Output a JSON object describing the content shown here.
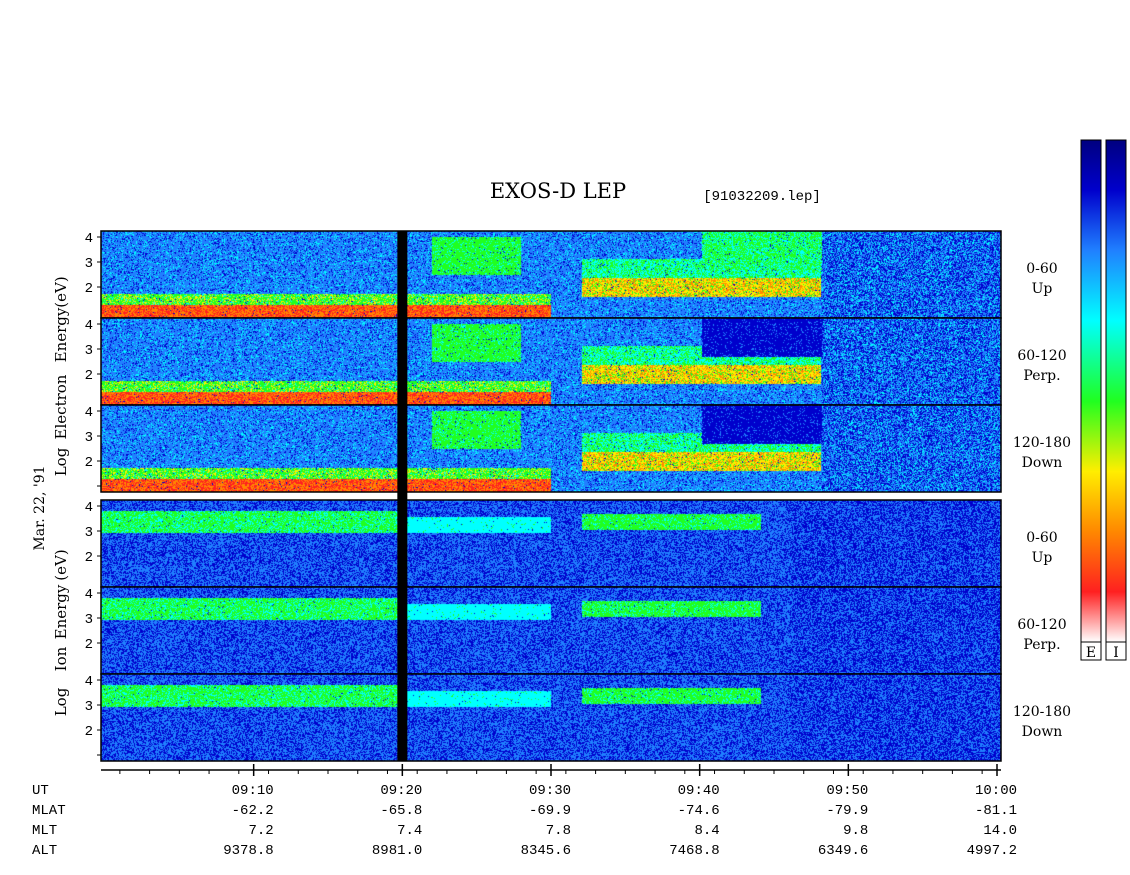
{
  "header": {
    "title": "EXOS-D LEP",
    "file": "[91032209.lep]"
  },
  "date_label": "Mar. 22, '91",
  "groups": [
    {
      "name": "electron",
      "ylabel_words": [
        "Electron",
        "Energy",
        "Log"
      ],
      "ylabel_unit": "(eV)"
    },
    {
      "name": "ion",
      "ylabel_words": [
        "Ion",
        "Energy",
        "Log"
      ],
      "ylabel_unit": "(eV)"
    }
  ],
  "panels": [
    {
      "group": "electron",
      "range": "0-60",
      "dir": "Up"
    },
    {
      "group": "electron",
      "range": "60-120",
      "dir": "Perp."
    },
    {
      "group": "electron",
      "range": "120-180",
      "dir": "Down"
    },
    {
      "group": "ion",
      "range": "0-60",
      "dir": "Up"
    },
    {
      "group": "ion",
      "range": "60-120",
      "dir": "Perp."
    },
    {
      "group": "ion",
      "range": "120-180",
      "dir": "Down"
    }
  ],
  "colorbars": [
    {
      "label": "E"
    },
    {
      "label": "I"
    }
  ],
  "colors": {
    "scale": [
      "#ffffff",
      "#ff2020",
      "#ff8800",
      "#ffee00",
      "#20ff20",
      "#00ffff",
      "#2080ff",
      "#0000cc",
      "#000080"
    ],
    "gap": "#000000"
  },
  "chart_data": {
    "type": "heatmap",
    "title": "EXOS-D LEP",
    "subtitle": "[91032209.lep]",
    "xlabel": "UT",
    "x_ticks": [
      "09:10",
      "09:20",
      "09:30",
      "09:40",
      "09:50",
      "10:00"
    ],
    "ylim": [
      1,
      4
    ],
    "y_ticks": [
      "4",
      "3",
      "2"
    ],
    "y_ticks_full": [
      "4",
      "3",
      "2",
      "1"
    ],
    "orbit_rows": [
      {
        "label": "MLAT",
        "values": [
          "-62.2",
          "-65.8",
          "-69.9",
          "-74.6",
          "-79.9",
          "-81.1"
        ]
      },
      {
        "label": "MLT",
        "values": [
          "7.2",
          "7.4",
          "7.8",
          "8.4",
          "9.8",
          "14.0"
        ]
      },
      {
        "label": "ALT",
        "values": [
          "9378.8",
          "8981.0",
          "8345.6",
          "7468.8",
          "6349.6",
          "4997.2"
        ]
      }
    ],
    "data_gap_ut": "09:20"
  }
}
